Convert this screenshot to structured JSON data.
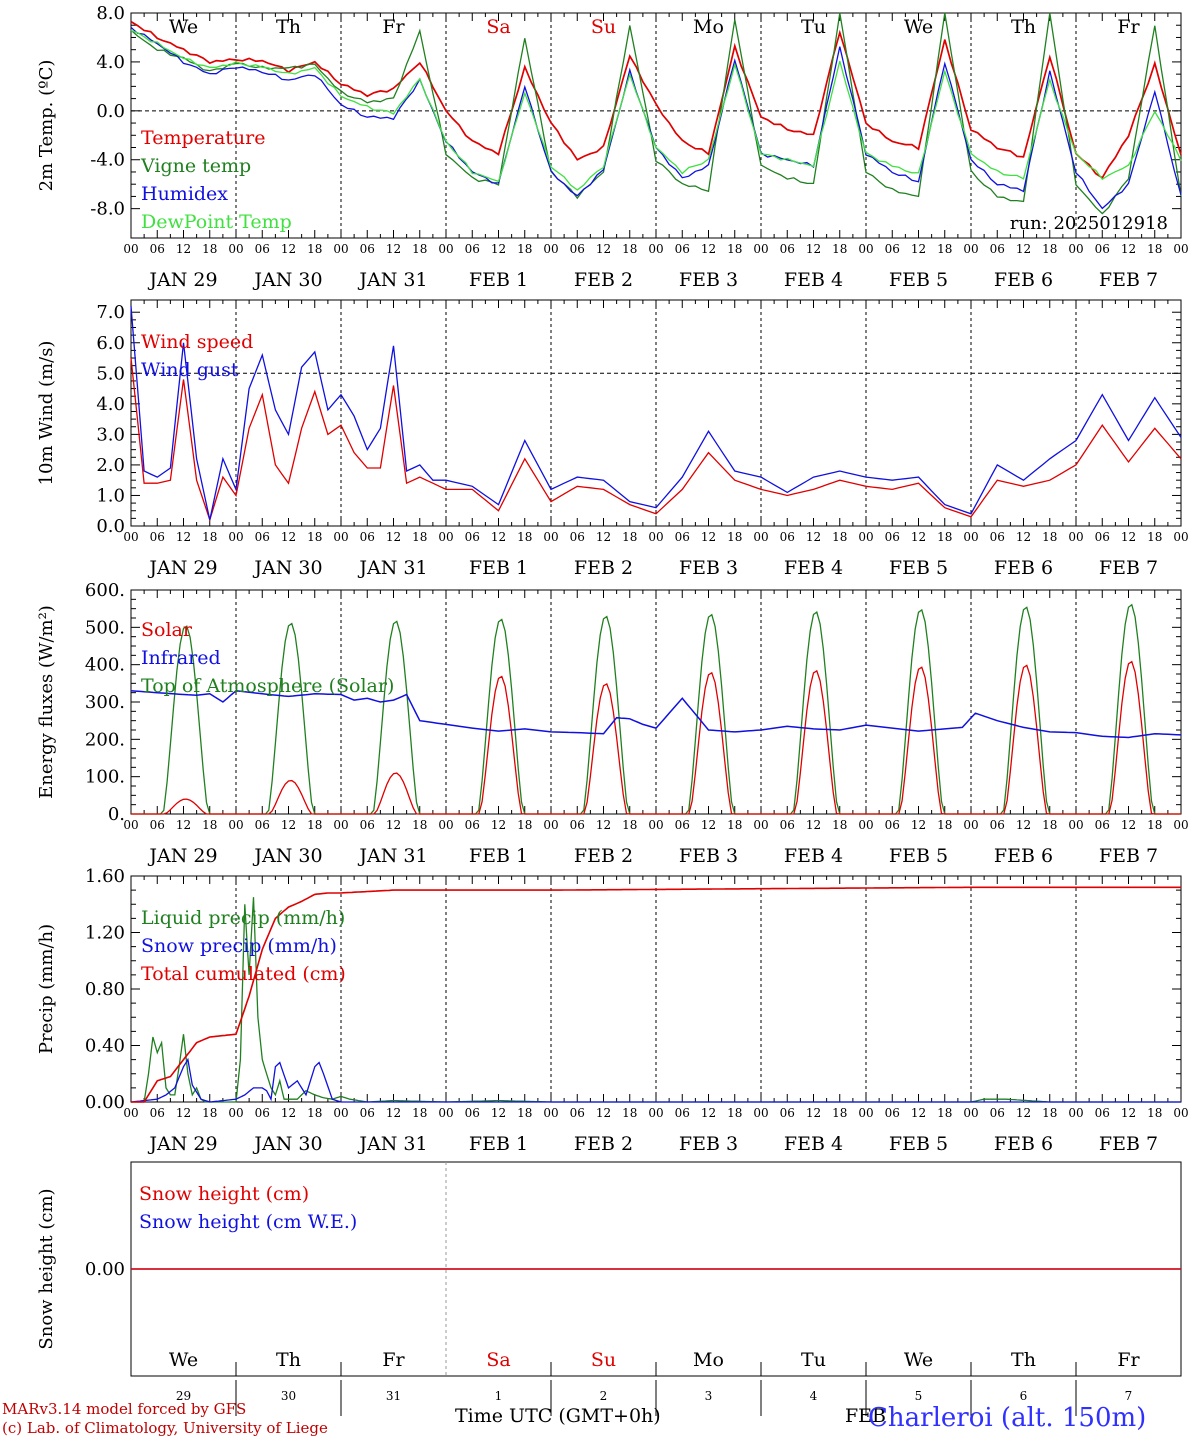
{
  "colors": {
    "temperature": "#e00000",
    "vigne": "#208020",
    "humidex": "#1010e0",
    "dewpoint": "#40e040",
    "wind_speed": "#e00000",
    "wind_gust": "#1010e0",
    "solar": "#e00000",
    "infrared": "#1010e0",
    "toa": "#208020",
    "liquid": "#208020",
    "snow": "#1010e0",
    "cumulated": "#e00000",
    "snow_height": "#e00000",
    "snow_we": "#1010e0",
    "weekend": "#e00000",
    "station": "#3030ff"
  },
  "days": {
    "weekday": [
      "We",
      "Th",
      "Fr",
      "Sa",
      "Su",
      "Mo",
      "Tu",
      "We",
      "Th",
      "Fr"
    ],
    "weekend_flags": [
      false,
      false,
      false,
      true,
      true,
      false,
      false,
      false,
      false,
      false
    ],
    "date_labels": [
      "JAN 29",
      "JAN 30",
      "JAN 31",
      "FEB  1",
      "FEB  2",
      "FEB  3",
      "FEB  4",
      "FEB  5",
      "FEB  6",
      "FEB  7"
    ],
    "day_numbers": [
      "29",
      "30",
      "31",
      "1",
      "2",
      "3",
      "4",
      "5",
      "6",
      "7"
    ],
    "hour_ticks": [
      "00",
      "06",
      "12",
      "18"
    ],
    "final_tick": "00"
  },
  "run_label": "run: 2025012918",
  "xlabel": "Time UTC (GMT+0h)",
  "month_label": "FEB",
  "station": "Charleroi (alt. 150m)",
  "credit_line1": "MARv3.14 model forced by GFS",
  "credit_line2": "(c) Lab. of Climatology, University of Liege",
  "chart_data": [
    {
      "type": "line",
      "id": "temp",
      "ylabel": "2m Temp. (ºC)",
      "ylim": [
        -10.4,
        8.0
      ],
      "yticks": [
        "8.0",
        "4.0",
        "0.0",
        "-4.0",
        "-8.0"
      ],
      "ytick_values": [
        8,
        4,
        0,
        -4,
        -8
      ],
      "ref_lines": [
        0
      ],
      "x_hours": [
        0,
        6,
        12,
        18,
        24,
        30,
        36,
        42,
        48,
        54,
        60,
        66,
        72,
        78,
        84,
        90,
        96,
        102,
        108,
        114,
        120,
        126,
        132,
        138,
        144,
        150,
        156,
        162,
        168,
        174,
        180,
        186,
        192,
        198,
        204,
        210,
        216,
        222,
        228,
        234,
        240
      ],
      "series": [
        {
          "name": "Temperature",
          "color_key": "temperature",
          "values": [
            7.3,
            6.0,
            5.0,
            4.0,
            4.2,
            4.1,
            3.3,
            4.0,
            2.2,
            1.3,
            1.8,
            4.0,
            0.0,
            -2.5,
            -3.5,
            3.5,
            -1.0,
            -4.0,
            -3.0,
            4.5,
            0.5,
            -2.5,
            -3.5,
            5.2,
            -0.5,
            -1.5,
            -2.0,
            6.5,
            -1.0,
            -2.5,
            -3.0,
            5.8,
            -1.5,
            -3.0,
            -3.8,
            4.5,
            -3.5,
            -5.5,
            -2.0,
            3.8,
            -3.6
          ]
        },
        {
          "name": "Vigne temp",
          "color_key": "vigne",
          "values": [
            6.5,
            5.0,
            4.3,
            3.2,
            3.9,
            3.5,
            3.5,
            3.8,
            1.5,
            0.7,
            1.0,
            6.5,
            -3.5,
            -5.5,
            -6.0,
            6.0,
            -5.0,
            -7.0,
            -5.0,
            7.0,
            -4.0,
            -6.0,
            -6.5,
            7.5,
            -4.5,
            -5.5,
            -6.0,
            8.0,
            -5.0,
            -6.5,
            -7.0,
            8.0,
            -5.0,
            -7.0,
            -7.5,
            8.0,
            -6.0,
            -8.5,
            -5.5,
            7.0,
            -7.0
          ]
        },
        {
          "name": "Humidex",
          "color_key": "humidex",
          "values": [
            6.8,
            5.5,
            4.0,
            3.0,
            3.6,
            3.2,
            2.5,
            3.0,
            0.5,
            -0.5,
            -0.6,
            2.5,
            -2.5,
            -5.0,
            -6.0,
            2.0,
            -5.0,
            -7.0,
            -4.8,
            3.2,
            -3.0,
            -5.5,
            -4.5,
            4.2,
            -3.5,
            -4.0,
            -4.5,
            5.2,
            -3.5,
            -5.0,
            -5.8,
            4.0,
            -4.0,
            -6.0,
            -6.5,
            3.2,
            -5.0,
            -8.0,
            -6.0,
            1.6,
            -7.0
          ]
        },
        {
          "name": "DewPoint Temp",
          "color_key": "dewpoint",
          "values": [
            6.6,
            5.5,
            4.3,
            3.5,
            3.9,
            3.6,
            3.0,
            3.5,
            1.2,
            0.3,
            -0.2,
            2.6,
            -2.5,
            -5.0,
            -5.8,
            1.5,
            -4.5,
            -6.5,
            -4.5,
            3.0,
            -3.0,
            -5.0,
            -4.0,
            3.8,
            -3.5,
            -4.0,
            -4.5,
            4.0,
            -3.5,
            -4.5,
            -5.2,
            3.2,
            -3.5,
            -5.0,
            -5.5,
            2.5,
            -3.5,
            -5.5,
            -4.5,
            0.0,
            -4.0
          ]
        }
      ]
    },
    {
      "type": "line",
      "id": "wind",
      "ylabel": "10m Wind (m/s)",
      "ylim": [
        0.0,
        7.4
      ],
      "yticks": [
        "7.0",
        "6.0",
        "5.0",
        "4.0",
        "3.0",
        "2.0",
        "1.0",
        "0.0"
      ],
      "ytick_values": [
        7,
        6,
        5,
        4,
        3,
        2,
        1,
        0
      ],
      "ref_lines": [
        5
      ],
      "x_hours": [
        0,
        3,
        6,
        9,
        12,
        15,
        18,
        21,
        24,
        27,
        30,
        33,
        36,
        39,
        42,
        45,
        48,
        51,
        54,
        57,
        60,
        63,
        66,
        69,
        72,
        78,
        84,
        90,
        96,
        102,
        108,
        114,
        120,
        126,
        132,
        138,
        144,
        150,
        156,
        162,
        168,
        174,
        180,
        186,
        192,
        198,
        204,
        210,
        216,
        222,
        228,
        234,
        240
      ],
      "series": [
        {
          "name": "Wind speed",
          "color_key": "wind_speed",
          "values": [
            5.5,
            1.4,
            1.4,
            1.5,
            4.8,
            1.5,
            0.2,
            1.6,
            1.0,
            3.2,
            4.3,
            2.0,
            1.4,
            3.2,
            4.4,
            3.0,
            3.3,
            2.4,
            1.9,
            1.9,
            4.6,
            1.4,
            1.6,
            1.4,
            1.2,
            1.2,
            0.5,
            2.2,
            0.8,
            1.3,
            1.2,
            0.7,
            0.4,
            1.2,
            2.4,
            1.5,
            1.2,
            1.0,
            1.2,
            1.5,
            1.3,
            1.2,
            1.4,
            0.6,
            0.3,
            1.5,
            1.3,
            1.5,
            2.0,
            3.3,
            2.1,
            3.2,
            2.2
          ]
        },
        {
          "name": "Wind gust",
          "color_key": "wind_gust",
          "values": [
            7.2,
            1.8,
            1.6,
            1.9,
            6.0,
            2.2,
            0.2,
            2.2,
            1.2,
            4.5,
            5.6,
            3.8,
            3.0,
            5.2,
            5.7,
            3.8,
            4.3,
            3.6,
            2.5,
            3.2,
            5.9,
            1.8,
            2.0,
            1.5,
            1.5,
            1.3,
            0.7,
            2.8,
            1.2,
            1.6,
            1.5,
            0.8,
            0.6,
            1.6,
            3.1,
            1.8,
            1.6,
            1.1,
            1.6,
            1.8,
            1.6,
            1.5,
            1.6,
            0.7,
            0.4,
            2.0,
            1.5,
            2.2,
            2.8,
            4.3,
            2.8,
            4.2,
            2.9
          ]
        }
      ]
    },
    {
      "type": "line",
      "id": "energy",
      "ylabel": "Energy fluxes (W/m²)",
      "ylim": [
        0,
        600
      ],
      "yticks": [
        "600.",
        "500.",
        "400.",
        "300.",
        "200.",
        "100.",
        "0."
      ],
      "ytick_values": [
        600,
        500,
        400,
        300,
        200,
        100,
        0
      ],
      "ref_lines": [],
      "solar_peaks": [
        40,
        90,
        110,
        370,
        350,
        380,
        385,
        395,
        400,
        410
      ],
      "toa_peaks": [
        505,
        512,
        518,
        523,
        531,
        536,
        543,
        549,
        556,
        563
      ],
      "infrared": {
        "x_hours": [
          0,
          6,
          12,
          15,
          18,
          21,
          24,
          30,
          36,
          42,
          48,
          51,
          54,
          57,
          60,
          63,
          66,
          72,
          78,
          84,
          90,
          96,
          102,
          108,
          111,
          114,
          117,
          120,
          126,
          132,
          138,
          144,
          150,
          156,
          162,
          168,
          174,
          180,
          186,
          190,
          193,
          198,
          204,
          210,
          216,
          222,
          228,
          234,
          240
        ],
        "values": [
          330,
          325,
          320,
          318,
          322,
          300,
          330,
          322,
          315,
          322,
          320,
          305,
          310,
          300,
          305,
          320,
          250,
          240,
          230,
          222,
          228,
          220,
          218,
          215,
          258,
          255,
          240,
          230,
          310,
          225,
          220,
          225,
          235,
          228,
          225,
          238,
          230,
          222,
          228,
          232,
          270,
          250,
          232,
          220,
          218,
          208,
          205,
          215,
          212
        ]
      }
    },
    {
      "type": "line",
      "id": "precip",
      "ylabel": "Precip (mm/h)",
      "ylim": [
        0,
        1.6
      ],
      "yticks": [
        "1.60",
        "1.20",
        "0.80",
        "0.40",
        "0.00"
      ],
      "ytick_values": [
        1.6,
        1.2,
        0.8,
        0.4,
        0.0
      ],
      "ref_lines": [],
      "series": [
        {
          "name": "Liquid precip (mm/h)",
          "color_key": "liquid",
          "x_hours": [
            0,
            3,
            4,
            5,
            6,
            7,
            8,
            9,
            10,
            11,
            12,
            13,
            14,
            15,
            16,
            17,
            18,
            19,
            20,
            21,
            22,
            23,
            24,
            25,
            26,
            27,
            28,
            29,
            30,
            31,
            32,
            33,
            34,
            35,
            36,
            38,
            40,
            42,
            44,
            46,
            48,
            50,
            54,
            60,
            72,
            84,
            96,
            120,
            192,
            195,
            200,
            210,
            240
          ],
          "values": [
            0,
            0,
            0.2,
            0.46,
            0.35,
            0.42,
            0.1,
            0.05,
            0.05,
            0.25,
            0.48,
            0.2,
            0.05,
            0.1,
            0.02,
            0,
            0,
            0,
            0,
            0,
            0,
            0,
            0,
            0.3,
            1.4,
            0.9,
            1.45,
            0.6,
            0.3,
            0.2,
            0.1,
            0.05,
            0.15,
            0.02,
            0.02,
            0.02,
            0.08,
            0.05,
            0.03,
            0.02,
            0.04,
            0.02,
            0,
            0.01,
            0,
            0.01,
            0,
            0,
            0,
            0.02,
            0.02,
            0,
            0
          ]
        },
        {
          "name": "Snow precip (mm/h)",
          "color_key": "snow",
          "x_hours": [
            0,
            6,
            8,
            10,
            12,
            13,
            14,
            16,
            18,
            24,
            26,
            28,
            30,
            31,
            32,
            33,
            34,
            36,
            38,
            40,
            42,
            43,
            44,
            46,
            48,
            72,
            120,
            240
          ],
          "values": [
            0,
            0.02,
            0.05,
            0.1,
            0.25,
            0.3,
            0.12,
            0.02,
            0,
            0.02,
            0.05,
            0.1,
            0.1,
            0.08,
            0.02,
            0.25,
            0.28,
            0.1,
            0.15,
            0.05,
            0.25,
            0.28,
            0.2,
            0.02,
            0,
            0,
            0,
            0
          ]
        },
        {
          "name": "Total cumulated (cm)",
          "color_key": "cumulated",
          "x_hours": [
            0,
            3,
            6,
            9,
            12,
            15,
            18,
            21,
            24,
            27,
            30,
            33,
            36,
            39,
            42,
            45,
            48,
            54,
            60,
            72,
            96,
            192,
            240
          ],
          "values": [
            0,
            0,
            0.15,
            0.18,
            0.3,
            0.42,
            0.46,
            0.47,
            0.48,
            0.75,
            1.08,
            1.3,
            1.38,
            1.42,
            1.47,
            1.48,
            1.48,
            1.49,
            1.5,
            1.5,
            1.5,
            1.52,
            1.52
          ]
        }
      ]
    },
    {
      "type": "line",
      "id": "snow",
      "ylabel": "Snow height (cm)",
      "ylim": [
        -1,
        1
      ],
      "yticks": [
        "0.00"
      ],
      "ytick_values": [
        0
      ],
      "ref_lines": [],
      "series": [
        {
          "name": "Snow height (cm)",
          "color_key": "snow_height",
          "x_hours": [
            0,
            240
          ],
          "values": [
            0,
            0
          ]
        },
        {
          "name": "Snow height (cm W.E.)",
          "color_key": "snow_we",
          "x_hours": [
            0,
            240
          ],
          "values": [
            0,
            0
          ]
        }
      ]
    }
  ]
}
